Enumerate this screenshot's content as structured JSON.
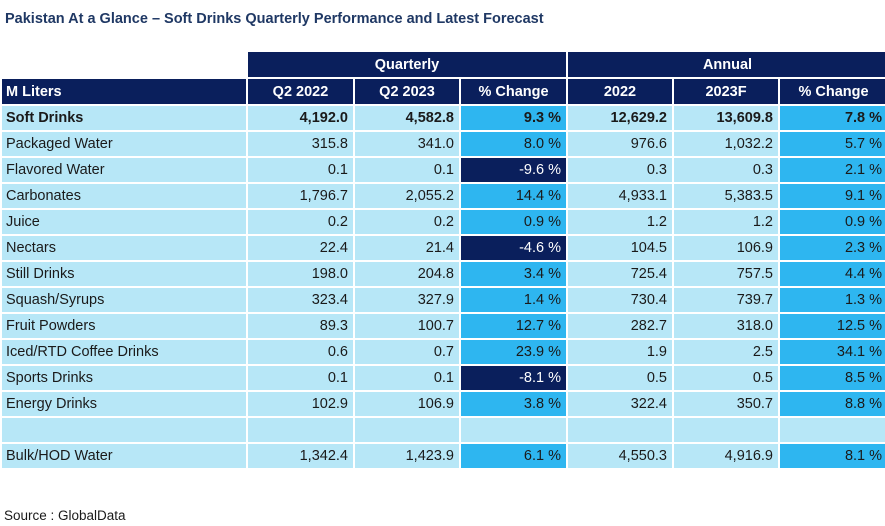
{
  "title": "Pakistan At a Glance – Soft Drinks Quarterly Performance and Latest Forecast",
  "groups": {
    "quarterly": "Quarterly",
    "annual": "Annual"
  },
  "columns": [
    "M Liters",
    "Q2 2022",
    "Q2 2023",
    "% Change",
    "2022",
    "2023F",
    "% Change"
  ],
  "rows": [
    {
      "name": "Soft Drinks",
      "q2022": "4,192.0",
      "q2023": "4,582.8",
      "qchg": "9.3 %",
      "y2022": "12,629.2",
      "y2023f": "13,609.8",
      "ychg": "7.8 %"
    },
    {
      "name": "Packaged Water",
      "q2022": "315.8",
      "q2023": "341.0",
      "qchg": "8.0 %",
      "y2022": "976.6",
      "y2023f": "1,032.2",
      "ychg": "5.7 %"
    },
    {
      "name": "Flavored Water",
      "q2022": "0.1",
      "q2023": "0.1",
      "qchg": "-9.6 %",
      "y2022": "0.3",
      "y2023f": "0.3",
      "ychg": "2.1 %"
    },
    {
      "name": "Carbonates",
      "q2022": "1,796.7",
      "q2023": "2,055.2",
      "qchg": "14.4 %",
      "y2022": "4,933.1",
      "y2023f": "5,383.5",
      "ychg": "9.1 %"
    },
    {
      "name": "Juice",
      "q2022": "0.2",
      "q2023": "0.2",
      "qchg": "0.9 %",
      "y2022": "1.2",
      "y2023f": "1.2",
      "ychg": "0.9 %"
    },
    {
      "name": "Nectars",
      "q2022": "22.4",
      "q2023": "21.4",
      "qchg": "-4.6 %",
      "y2022": "104.5",
      "y2023f": "106.9",
      "ychg": "2.3 %"
    },
    {
      "name": "Still Drinks",
      "q2022": "198.0",
      "q2023": "204.8",
      "qchg": "3.4 %",
      "y2022": "725.4",
      "y2023f": "757.5",
      "ychg": "4.4 %"
    },
    {
      "name": "Squash/Syrups",
      "q2022": "323.4",
      "q2023": "327.9",
      "qchg": "1.4 %",
      "y2022": "730.4",
      "y2023f": "739.7",
      "ychg": "1.3 %"
    },
    {
      "name": "Fruit Powders",
      "q2022": "89.3",
      "q2023": "100.7",
      "qchg": "12.7 %",
      "y2022": "282.7",
      "y2023f": "318.0",
      "ychg": "12.5 %"
    },
    {
      "name": "Iced/RTD Coffee Drinks",
      "q2022": "0.6",
      "q2023": "0.7",
      "qchg": "23.9 %",
      "y2022": "1.9",
      "y2023f": "2.5",
      "ychg": "34.1 %"
    },
    {
      "name": "Sports Drinks",
      "q2022": "0.1",
      "q2023": "0.1",
      "qchg": "-8.1 %",
      "y2022": "0.5",
      "y2023f": "0.5",
      "ychg": "8.5 %"
    },
    {
      "name": "Energy Drinks",
      "q2022": "102.9",
      "q2023": "106.9",
      "qchg": "3.8 %",
      "y2022": "322.4",
      "y2023f": "350.7",
      "ychg": "8.8 %"
    }
  ],
  "bulk": {
    "name": "Bulk/HOD Water",
    "q2022": "1,342.4",
    "q2023": "1,423.9",
    "qchg": "6.1 %",
    "y2022": "4,550.3",
    "y2023f": "4,916.9",
    "ychg": "8.1 %"
  },
  "source": "Source : GlobalData",
  "colors": {
    "navy": "#0a1f5c",
    "light_blue": "#b7e7f7",
    "bright_blue": "#2eb6f0",
    "title": "#1f3864"
  }
}
